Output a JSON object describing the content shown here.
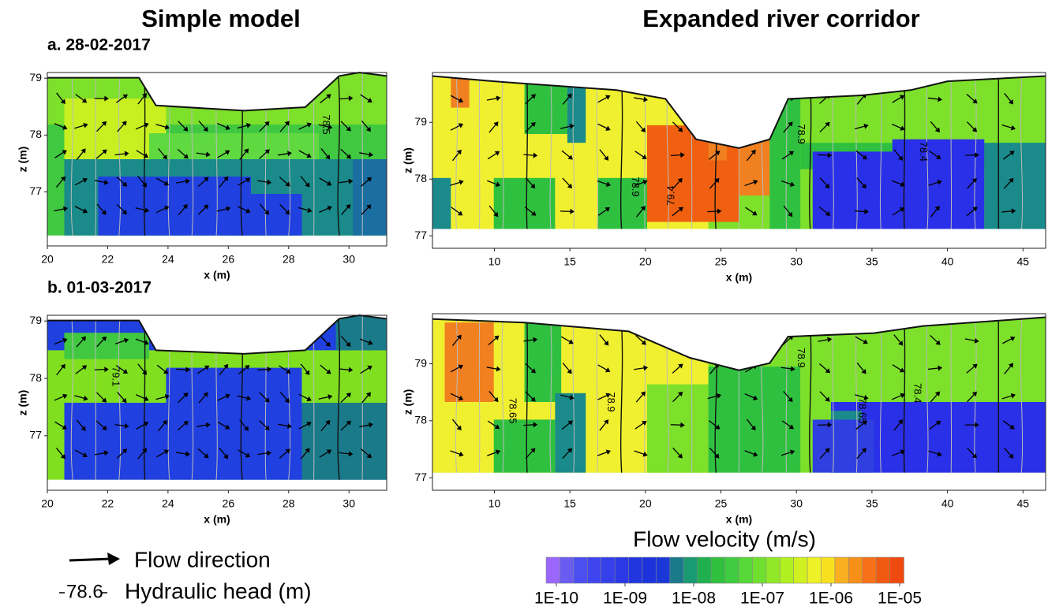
{
  "columns": [
    "Simple model",
    "Expanded river corridor"
  ],
  "chart_data": [
    {
      "type": "contour",
      "title": "a. 28-02-2017",
      "x_label": "x (m)",
      "y_label": "z (m)",
      "xlim": [
        20,
        31.25
      ],
      "ylim": [
        76.05,
        79.1
      ],
      "xticks": [
        20,
        22,
        24,
        26,
        28,
        30
      ],
      "yticks": [
        77,
        78,
        79
      ],
      "contour_labels": [
        "78.5"
      ]
    },
    {
      "type": "contour",
      "x_label": "x (m)",
      "y_label": "z (m)",
      "xlim": [
        5.9,
        46.5
      ],
      "ylim": [
        76.78,
        79.88
      ],
      "xticks": [
        10,
        15,
        20,
        25,
        30,
        35,
        40,
        45
      ],
      "yticks": [
        77,
        78,
        79
      ],
      "contour_labels": [
        "78.9",
        "79.4",
        "78.9",
        "78.4"
      ]
    },
    {
      "type": "contour",
      "title": "b. 01-03-2017",
      "x_label": "x (m)",
      "y_label": "z (m)",
      "xlim": [
        20,
        31.25
      ],
      "ylim": [
        76.05,
        79.1
      ],
      "xticks": [
        20,
        22,
        24,
        26,
        28,
        30
      ],
      "yticks": [
        77,
        78,
        79
      ],
      "contour_labels": [
        "79.1"
      ]
    },
    {
      "type": "contour",
      "x_label": "x (m)",
      "y_label": "z (m)",
      "xlim": [
        5.9,
        46.5
      ],
      "ylim": [
        76.78,
        79.88
      ],
      "xticks": [
        10,
        15,
        20,
        25,
        30,
        35,
        40,
        45
      ],
      "yticks": [
        77,
        78,
        79
      ],
      "contour_labels": [
        "78.65",
        "78.9",
        "78.9",
        "78.65",
        "78.4"
      ]
    }
  ],
  "colorbar": {
    "title": "Flow velocity (m/s)",
    "scale": "log",
    "lim": [
      1e-10,
      1e-05
    ],
    "ticks": [
      {
        "value": 1e-10,
        "label": "1E-10"
      },
      {
        "value": 1e-09,
        "label": "1E-09"
      },
      {
        "value": 1e-08,
        "label": "1E-08"
      },
      {
        "value": 1e-07,
        "label": "1E-07"
      },
      {
        "value": 1e-06,
        "label": "1E-06"
      },
      {
        "value": 1e-05,
        "label": "1E-05"
      }
    ],
    "colors": [
      "#9966ff",
      "#6a5cf0",
      "#4b4ff0",
      "#3f45ee",
      "#3540ea",
      "#2a38e6",
      "#2236e0",
      "#1c33dc",
      "#1a38d8",
      "#1a7a8a",
      "#1a9a70",
      "#20b050",
      "#30c040",
      "#40cc40",
      "#55d838",
      "#70e030",
      "#90e828",
      "#b0f020",
      "#d0f020",
      "#eef028",
      "#f8e020",
      "#f8b020",
      "#f89018",
      "#f87018",
      "#f05a10",
      "#f04a10"
    ]
  },
  "legend": {
    "arrow_label": "Flow direction",
    "head_sample": "78.6",
    "head_label": "Hydraulic head (m)"
  }
}
